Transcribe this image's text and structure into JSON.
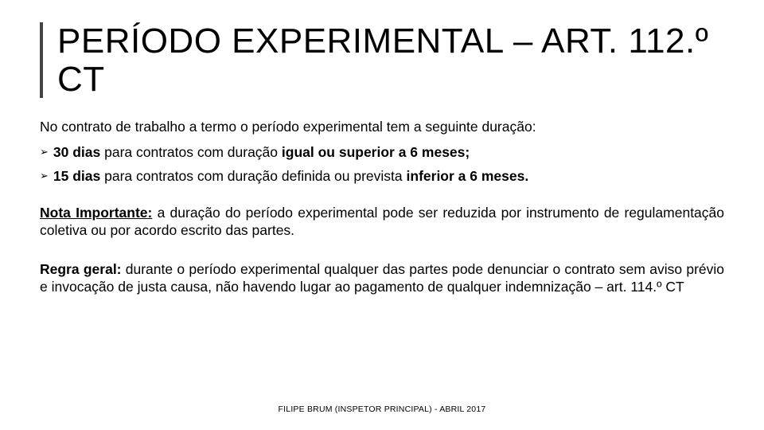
{
  "title": "PERÍODO EXPERIMENTAL – ART. 112.º CT",
  "accent_color": "#444444",
  "intro": "No contrato de trabalho a termo o período experimental tem a seguinte duração:",
  "bullets": [
    {
      "bold1": "30 dias",
      "mid": " para contratos com duração ",
      "bold2": "igual ou superior a 6 meses;"
    },
    {
      "bold1": "15 dias",
      "mid": " para contratos com duração definida ou prevista ",
      "bold2": "inferior a 6 meses."
    }
  ],
  "note_label": "Nota Importante:",
  "note_text": " a duração do período experimental pode ser reduzida por instrumento de regulamentação coletiva ou por acordo escrito das partes.",
  "rule_label": "Regra geral:",
  "rule_text": " durante o período experimental qualquer das partes pode denunciar o contrato sem aviso prévio e invocação de justa causa, não havendo lugar ao pagamento de qualquer indemnização – art. 114.º CT",
  "footer": "FILIPE BRUM (INSPETOR PRINCIPAL) - ABRIL 2017",
  "bullet_marker": "➢",
  "font_sizes": {
    "title": 44,
    "body": 17.5,
    "footer": 10.5
  },
  "colors": {
    "text": "#000000",
    "background": "#ffffff"
  }
}
